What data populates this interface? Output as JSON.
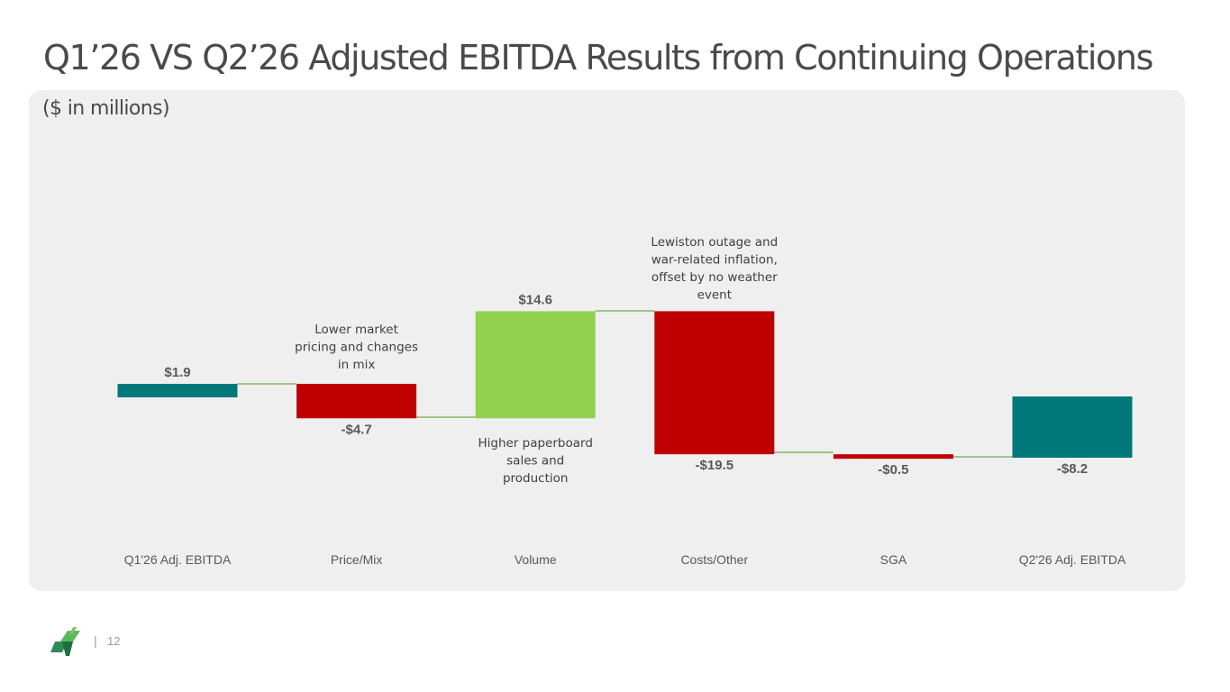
{
  "title": "Q1’26 VS Q2’26 Adjusted EBITDA Results from Continuing Operations",
  "subtitle": "($ in millions)",
  "footer": {
    "separator": "|",
    "page_number": "12"
  },
  "colors": {
    "total": "#00787a",
    "increase": "#92d050",
    "decrease": "#c00000",
    "connector": "#70ad47",
    "panel": "#efefef"
  },
  "chart_data": {
    "type": "bar",
    "subtype": "waterfall",
    "categories": [
      "Q1'26 Adj. EBITDA",
      "Price/Mix",
      "Volume",
      "Costs/Other",
      "SGA",
      "Q2'26 Adj. EBITDA"
    ],
    "values": [
      1.9,
      -4.7,
      14.6,
      -19.5,
      -0.5,
      -8.2
    ],
    "value_labels": [
      "$1.9",
      "-$4.7",
      "$14.6",
      "-$19.5",
      "-$0.5",
      "-$8.2"
    ],
    "kinds": [
      "total",
      "decrease",
      "increase",
      "decrease",
      "decrease",
      "total"
    ],
    "annotations": [
      {
        "category": "Price/Mix",
        "lines": [
          "Lower market",
          "pricing and changes",
          "in mix"
        ]
      },
      {
        "category": "Volume",
        "lines": [
          "Higher paperboard",
          "sales and",
          "production"
        ]
      },
      {
        "category": "Costs/Other",
        "lines": [
          "Lewiston outage and",
          "war-related inflation,",
          "offset by no weather",
          "event"
        ]
      }
    ],
    "grid": false,
    "legend": "none"
  }
}
